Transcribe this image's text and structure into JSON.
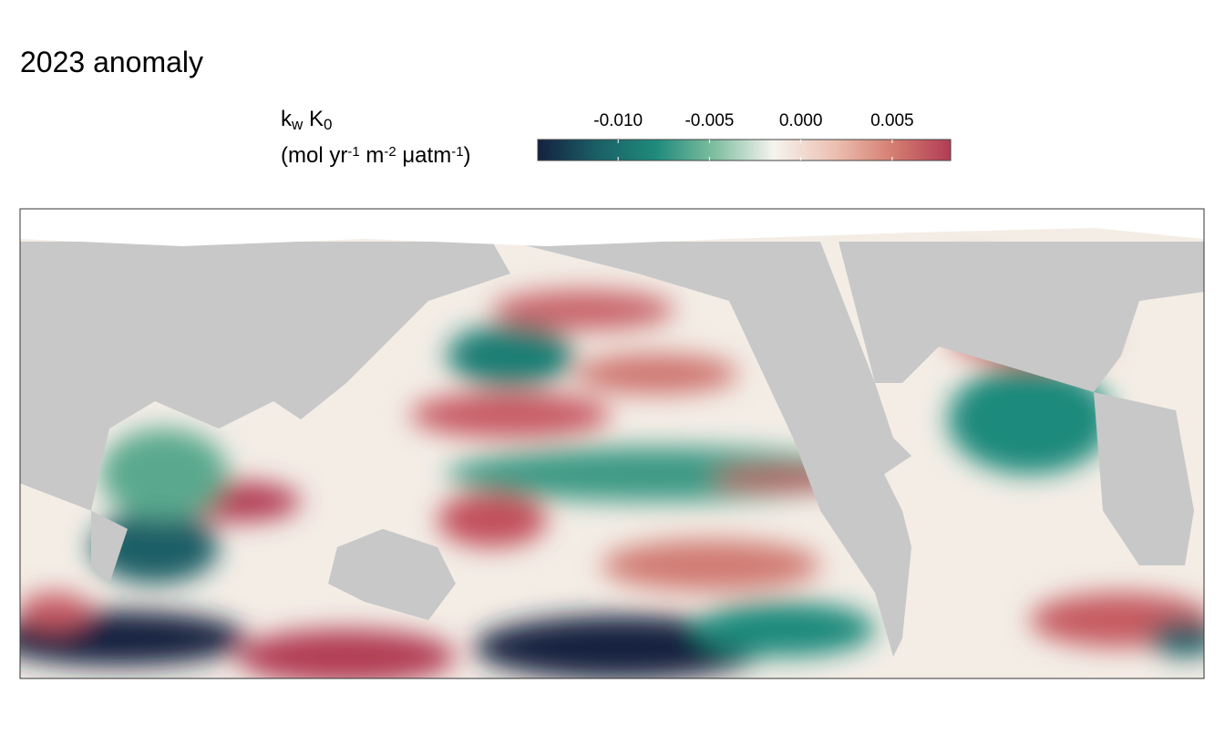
{
  "title": "2023 anomaly",
  "legend": {
    "title_line1": [
      {
        "text": "k"
      },
      {
        "text": "w",
        "baseline": "sub"
      },
      {
        "text": " K"
      },
      {
        "text": "0",
        "baseline": "sub"
      }
    ],
    "title_line2": [
      {
        "text": "(mol yr"
      },
      {
        "text": "-1",
        "baseline": "super"
      },
      {
        "text": " m"
      },
      {
        "text": "-2",
        "baseline": "super"
      },
      {
        "text": " μatm"
      },
      {
        "text": "-1",
        "baseline": "super"
      },
      {
        "text": ")"
      }
    ],
    "clim": [
      -0.0144,
      0.0082
    ],
    "ticks": [
      {
        "value": -0.01,
        "label": "-0.010"
      },
      {
        "value": -0.005,
        "label": "-0.005"
      },
      {
        "value": 0,
        "label": "0.000"
      },
      {
        "value": 0.005,
        "label": "0.005"
      }
    ],
    "colors": [
      "#14213f",
      "#1b5f66",
      "#1f8a7c",
      "#7fbfa0",
      "#f6f3ee",
      "#ecc2b4",
      "#d57f72",
      "#b23c55"
    ]
  }
}
